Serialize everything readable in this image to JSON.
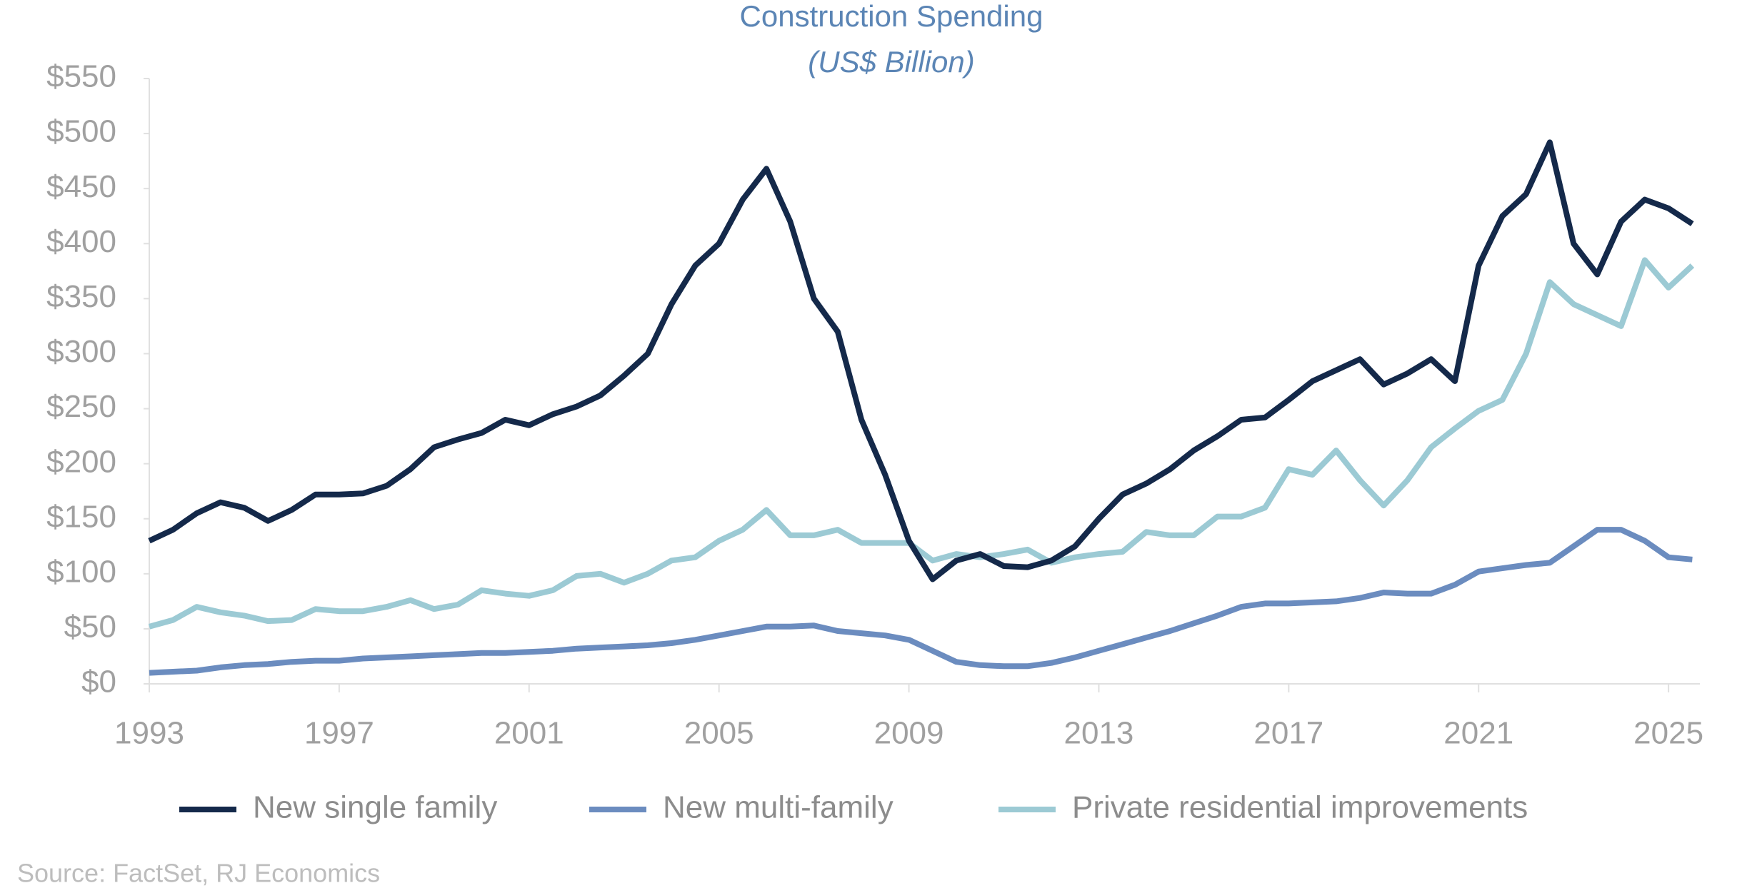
{
  "chart_data": {
    "type": "line",
    "title": "Construction Spending",
    "subtitle": "(US$ Billion)",
    "source": "Source: FactSet, RJ Economics",
    "x": [
      1993,
      1993.5,
      1994,
      1994.5,
      1995,
      1995.5,
      1996,
      1996.5,
      1997,
      1997.5,
      1998,
      1998.5,
      1999,
      1999.5,
      2000,
      2000.5,
      2001,
      2001.5,
      2002,
      2002.5,
      2003,
      2003.5,
      2004,
      2004.5,
      2005,
      2005.5,
      2006,
      2006.5,
      2007,
      2007.5,
      2008,
      2008.5,
      2009,
      2009.5,
      2010,
      2010.5,
      2011,
      2011.5,
      2012,
      2012.5,
      2013,
      2013.5,
      2014,
      2014.5,
      2015,
      2015.5,
      2016,
      2016.5,
      2017,
      2017.5,
      2018,
      2018.5,
      2019,
      2019.5,
      2020,
      2020.5,
      2021,
      2021.5,
      2022,
      2022.5,
      2023,
      2023.5,
      2024,
      2024.5,
      2025,
      2025.5
    ],
    "series": [
      {
        "name": "New single family",
        "color": "#14294a",
        "values": [
          130,
          140,
          155,
          165,
          160,
          148,
          158,
          172,
          172,
          173,
          180,
          195,
          215,
          222,
          228,
          240,
          235,
          245,
          252,
          262,
          280,
          300,
          345,
          380,
          400,
          440,
          468,
          420,
          350,
          320,
          240,
          190,
          130,
          95,
          112,
          118,
          107,
          106,
          112,
          125,
          150,
          172,
          182,
          195,
          212,
          225,
          240,
          242,
          258,
          275,
          285,
          295,
          272,
          282,
          295,
          275,
          380,
          425,
          445,
          492,
          400,
          372,
          420,
          440,
          432,
          418
        ]
      },
      {
        "name": "New multi-family",
        "color": "#6b8cbf",
        "values": [
          10,
          11,
          12,
          15,
          17,
          18,
          20,
          21,
          21,
          23,
          24,
          25,
          26,
          27,
          28,
          28,
          29,
          30,
          32,
          33,
          34,
          35,
          37,
          40,
          44,
          48,
          52,
          52,
          53,
          48,
          46,
          44,
          40,
          30,
          20,
          17,
          16,
          16,
          19,
          24,
          30,
          36,
          42,
          48,
          55,
          62,
          70,
          73,
          73,
          74,
          75,
          78,
          83,
          82,
          82,
          90,
          102,
          105,
          108,
          110,
          125,
          140,
          140,
          130,
          115,
          113
        ]
      },
      {
        "name": "Private residential improvements",
        "color": "#9ccad4",
        "values": [
          52,
          58,
          70,
          65,
          62,
          57,
          58,
          68,
          66,
          66,
          70,
          76,
          68,
          72,
          85,
          82,
          80,
          85,
          98,
          100,
          92,
          100,
          112,
          115,
          130,
          140,
          158,
          135,
          135,
          140,
          128,
          128,
          128,
          112,
          118,
          115,
          118,
          122,
          110,
          115,
          118,
          120,
          138,
          135,
          135,
          152,
          152,
          160,
          195,
          190,
          212,
          185,
          162,
          185,
          215,
          232,
          248,
          258,
          300,
          365,
          345,
          335,
          325,
          385,
          360,
          380
        ]
      }
    ],
    "xlim": [
      1993,
      2025.66
    ],
    "xticks": [
      1993,
      1997,
      2001,
      2005,
      2009,
      2013,
      2017,
      2021,
      2025
    ],
    "ylim": [
      0,
      550
    ],
    "yticks": [
      {
        "value": 0,
        "label": "$0"
      },
      {
        "value": 50,
        "label": "$50"
      },
      {
        "value": 100,
        "label": "$100"
      },
      {
        "value": 150,
        "label": "$150"
      },
      {
        "value": 200,
        "label": "$200"
      },
      {
        "value": 250,
        "label": "$250"
      },
      {
        "value": 300,
        "label": "$300"
      },
      {
        "value": 350,
        "label": "$350"
      },
      {
        "value": 400,
        "label": "$400"
      },
      {
        "value": 450,
        "label": "$450"
      },
      {
        "value": 500,
        "label": "$500"
      },
      {
        "value": 550,
        "label": "$550"
      }
    ],
    "grid": false,
    "legend": "bottom"
  }
}
